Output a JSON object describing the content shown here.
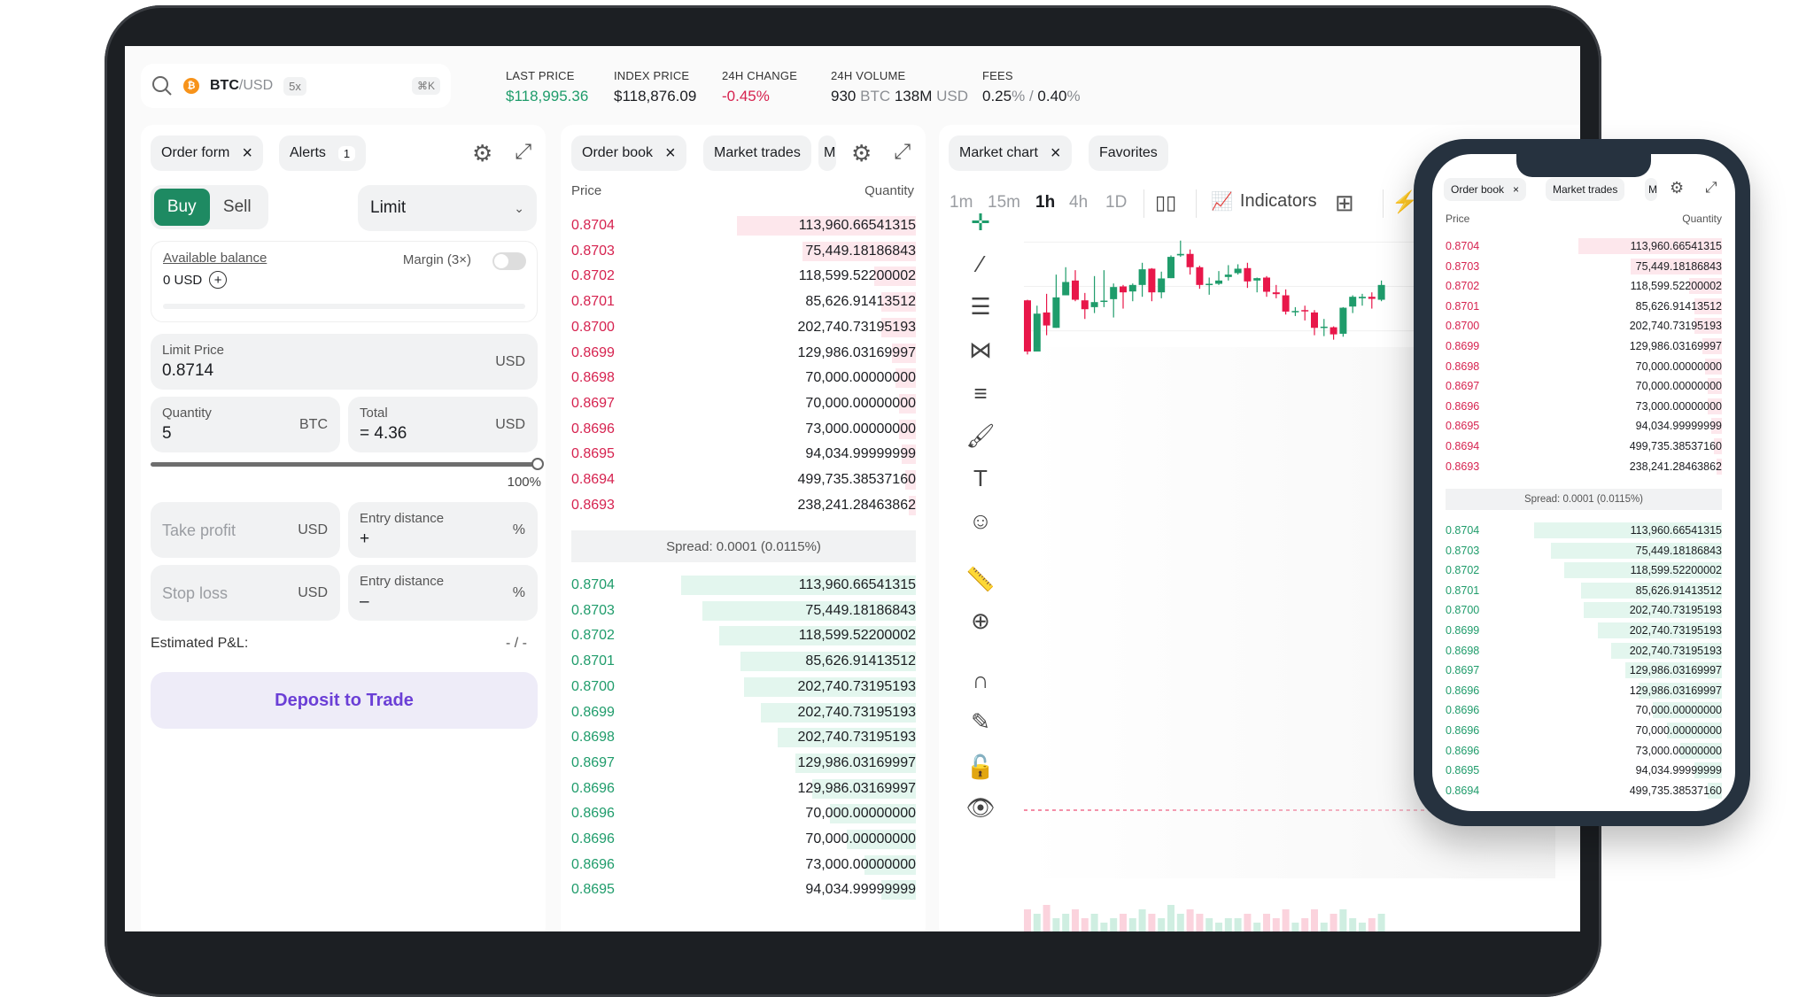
{
  "header": {
    "search_icon": "search-icon",
    "coin_icon": "bitcoin-icon",
    "pair_base": "BTC",
    "pair_quote": "/USD",
    "leverage": "5x",
    "shortcut": "⌘K",
    "stats": [
      {
        "label": "LAST PRICE",
        "value": "$118,995.36",
        "color": "#1f9c6b"
      },
      {
        "label": "INDEX PRICE",
        "value": "$118,876.09",
        "color": "#1b1d21"
      },
      {
        "label": "24H CHANGE",
        "value": "-0.45%",
        "color": "#d6224f"
      }
    ],
    "volume": {
      "label": "24H VOLUME",
      "btc": "930",
      "btc_unit": "BTC",
      "usd": "138M",
      "usd_unit": "USD"
    },
    "fees": {
      "label": "FEES",
      "maker": "0.25",
      "sep": " / ",
      "taker": "0.40",
      "unit": "%"
    }
  },
  "order_form": {
    "tabs": [
      {
        "label": "Order form",
        "close": "×"
      },
      {
        "label": "Alerts",
        "badge": "1"
      }
    ],
    "buy": "Buy",
    "sell": "Sell",
    "order_type": "Limit",
    "available_balance": "Available balance",
    "balance": "0 USD",
    "margin": "Margin (3×)",
    "margin_on": false,
    "limit_price": {
      "label": "Limit Price",
      "value": "0.8714",
      "unit": "USD"
    },
    "quantity": {
      "label": "Quantity",
      "value": "5",
      "unit": "BTC"
    },
    "total": {
      "label": "Total",
      "value": "= 4.36",
      "unit": "USD"
    },
    "slider_percent": 100,
    "slider_label": "100%",
    "take_profit": {
      "placeholder": "Take profit",
      "unit": "USD"
    },
    "tp_distance": {
      "label": "Entry distance",
      "value": "+",
      "unit": "%"
    },
    "stop_loss": {
      "placeholder": "Stop loss",
      "unit": "USD"
    },
    "sl_distance": {
      "label": "Entry distance",
      "value": "–",
      "unit": "%"
    },
    "pnl_label": "Estimated P&L:",
    "pnl_value": "- / -",
    "deposit": "Deposit to Trade",
    "colors": {
      "buy": "#1e8a62",
      "deposit_text": "#6b3fd6",
      "deposit_bg": "#eeecf8"
    }
  },
  "order_book": {
    "tabs": [
      {
        "label": "Order book",
        "close": "×"
      },
      {
        "label": "Market trades"
      },
      {
        "label": "M"
      }
    ],
    "price_header": "Price",
    "qty_header": "Quantity",
    "spread": "Spread: 0.0001 (0.0115%)",
    "asks": [
      {
        "price": "0.8704",
        "qty": "113,960.66541315",
        "depth": 0.52
      },
      {
        "price": "0.8703",
        "qty": "75,449.18186843",
        "depth": 0.33
      },
      {
        "price": "0.8702",
        "qty": "118,599.52200002",
        "depth": 0.12
      },
      {
        "price": "0.8701",
        "qty": "85,626.91413512",
        "depth": 0.1
      },
      {
        "price": "0.8700",
        "qty": "202,740.73195193",
        "depth": 0.1
      },
      {
        "price": "0.8699",
        "qty": "129,986.03169997",
        "depth": 0.07
      },
      {
        "price": "0.8698",
        "qty": "70,000.00000000",
        "depth": 0.06
      },
      {
        "price": "0.8697",
        "qty": "70,000.00000000",
        "depth": 0.05
      },
      {
        "price": "0.8696",
        "qty": "73,000.00000000",
        "depth": 0.05
      },
      {
        "price": "0.8695",
        "qty": "94,034.99999999",
        "depth": 0.04
      },
      {
        "price": "0.8694",
        "qty": "499,735.38537160",
        "depth": 0.03
      },
      {
        "price": "0.8693",
        "qty": "238,241.28463862",
        "depth": 0.02
      }
    ],
    "bids": [
      {
        "price": "0.8704",
        "qty": "113,960.66541315",
        "depth": 0.68
      },
      {
        "price": "0.8703",
        "qty": "75,449.18186843",
        "depth": 0.62
      },
      {
        "price": "0.8702",
        "qty": "118,599.52200002",
        "depth": 0.57
      },
      {
        "price": "0.8701",
        "qty": "85,626.91413512",
        "depth": 0.51
      },
      {
        "price": "0.8700",
        "qty": "202,740.73195193",
        "depth": 0.5
      },
      {
        "price": "0.8699",
        "qty": "202,740.73195193",
        "depth": 0.45
      },
      {
        "price": "0.8698",
        "qty": "202,740.73195193",
        "depth": 0.4
      },
      {
        "price": "0.8697",
        "qty": "129,986.03169997",
        "depth": 0.35
      },
      {
        "price": "0.8696",
        "qty": "129,986.03169997",
        "depth": 0.3
      },
      {
        "price": "0.8696",
        "qty": "70,000.00000000",
        "depth": 0.25
      },
      {
        "price": "0.8696",
        "qty": "70,000.00000000",
        "depth": 0.2
      },
      {
        "price": "0.8696",
        "qty": "73,000.00000000",
        "depth": 0.15
      },
      {
        "price": "0.8695",
        "qty": "94,034.99999999",
        "depth": 0.1
      },
      {
        "price": "0.8694",
        "qty": "499,735.38537160",
        "depth": 0.05
      }
    ],
    "colors": {
      "ask": "#d6224f",
      "bid": "#1f9c6b",
      "ask_bar": "#fde7ec",
      "bid_bar": "#e3f6ee"
    }
  },
  "chart": {
    "tabs": [
      {
        "label": "Market chart",
        "close": "×"
      },
      {
        "label": "Favorites"
      }
    ],
    "timeframes": [
      "1m",
      "15m",
      "1h",
      "4h",
      "1D"
    ],
    "active_timeframe": "1h",
    "indicators": "Indicators",
    "tools": [
      "crosshair-icon",
      "trend-line-icon",
      "horizontal-lines-icon",
      "pattern-icon",
      "fib-icon",
      "brush-icon",
      "text-icon",
      "emoji-icon",
      "ruler-icon",
      "zoom-in-icon",
      "magnet-icon",
      "lock-drawing-icon",
      "unlock-icon",
      "eye-icon"
    ]
  },
  "chart_data": {
    "type": "candlestick",
    "candles": [
      [
        40.6,
        6,
        41,
        4
      ],
      [
        6,
        31.6,
        37,
        6
      ],
      [
        32.4,
        23.6,
        45,
        17
      ],
      [
        22,
        42.6,
        58,
        22
      ],
      [
        44,
        53,
        63,
        44
      ],
      [
        54,
        41,
        61,
        40
      ],
      [
        40.6,
        34.6,
        45.6,
        28
      ],
      [
        36,
        39.4,
        57,
        32
      ],
      [
        40,
        40.4,
        61,
        36
      ],
      [
        41.4,
        49.6,
        52,
        29
      ],
      [
        50,
        46,
        51,
        35
      ],
      [
        46.6,
        51,
        52,
        40
      ],
      [
        51,
        61.6,
        66,
        43
      ],
      [
        62,
        46,
        62.4,
        40
      ],
      [
        46,
        55.4,
        60,
        42
      ],
      [
        55.6,
        70,
        71,
        55.6
      ],
      [
        71,
        72,
        81,
        70
      ],
      [
        72,
        63,
        75,
        58
      ],
      [
        63,
        51,
        64,
        48.4
      ],
      [
        51.4,
        51.8,
        56,
        44.4
      ],
      [
        51.8,
        54,
        60.4,
        51
      ],
      [
        56.4,
        58,
        64.4,
        54
      ],
      [
        59,
        62,
        65,
        58
      ],
      [
        62.4,
        53.4,
        66,
        49
      ],
      [
        54,
        55.6,
        56,
        46
      ],
      [
        56,
        46.4,
        57,
        43
      ],
      [
        46,
        44.8,
        51,
        42
      ],
      [
        44,
        33,
        48,
        31
      ],
      [
        32.8,
        33.4,
        36,
        30
      ],
      [
        34,
        33.2,
        37,
        27
      ],
      [
        32.4,
        22,
        34,
        17
      ],
      [
        22,
        22.8,
        28,
        16.4
      ],
      [
        22.4,
        17.6,
        23,
        14
      ],
      [
        18,
        35.6,
        36,
        16
      ],
      [
        36.4,
        43,
        44,
        32
      ],
      [
        42,
        43,
        45,
        37
      ],
      [
        43,
        41.6,
        46,
        35
      ],
      [
        41,
        51,
        54,
        40
      ]
    ],
    "volume": [
      5,
      4,
      6,
      3,
      4,
      5,
      3,
      4,
      2,
      3,
      4,
      3,
      5,
      4,
      3,
      6,
      4,
      5,
      4,
      3,
      2,
      3,
      3,
      4,
      2,
      4,
      3,
      5,
      2,
      3,
      5,
      2,
      4,
      5,
      3,
      2,
      3,
      4
    ],
    "colors": {
      "up": "#1f9c6b",
      "down": "#e8174a"
    }
  },
  "phone": {
    "tabs": [
      {
        "label": "Order book",
        "close": "×"
      },
      {
        "label": "Market trades"
      },
      {
        "label": "M"
      }
    ],
    "price_header": "Price",
    "qty_header": "Quantity",
    "spread": "Spread: 0.0001 (0.0115%)"
  }
}
